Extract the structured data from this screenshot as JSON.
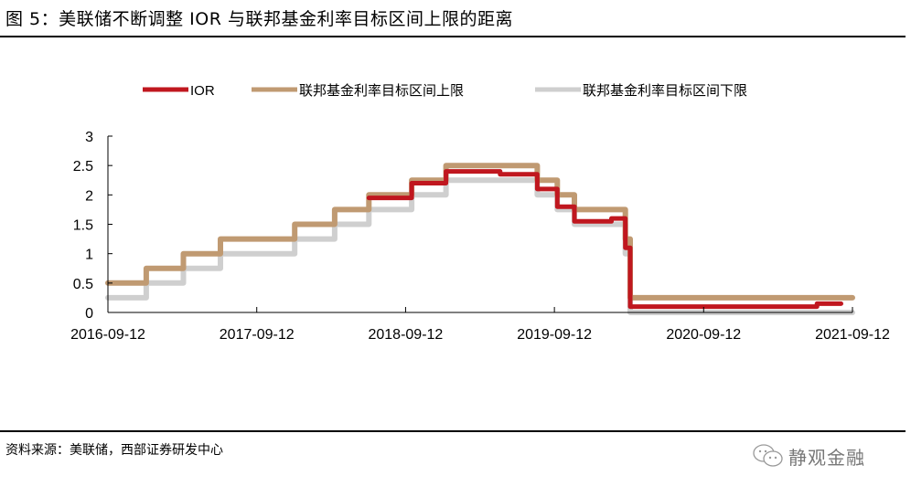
{
  "header": {
    "title": "图 5：美联储不断调整 IOR 与联邦基金利率目标区间上限的距离"
  },
  "footer": {
    "source": "资料来源：美联储，西部证券研发中心",
    "brand": "静观金融",
    "brand_icon": "wechat-icon"
  },
  "colors": {
    "ior": "#C0171F",
    "upper": "#C09A72",
    "lower": "#CFCFCF",
    "axis": "#000000"
  },
  "chart_data": {
    "type": "line",
    "step": true,
    "title": "美联储不断调整 IOR 与联邦基金利率目标区间上限的距离",
    "xlabel": "",
    "ylabel": "",
    "ylim": [
      0,
      3
    ],
    "yticks": [
      0,
      0.5,
      1,
      1.5,
      2,
      2.5,
      3
    ],
    "ytick_labels": [
      "0",
      "0.5",
      "1",
      "1.5",
      "2",
      "2.5",
      "3"
    ],
    "xlim": [
      "2016-09-12",
      "2021-09-12"
    ],
    "xticks": [
      "2016-09-12",
      "2017-09-12",
      "2018-09-12",
      "2019-09-12",
      "2020-09-12",
      "2021-09-12"
    ],
    "grid": false,
    "legend_position": "top",
    "legend": [
      "IOR",
      "联邦基金利率目标区间上限",
      "联邦基金利率目标区间下限"
    ],
    "series": [
      {
        "name": "IOR",
        "color": "#C0171F",
        "points": [
          [
            "2018-06-14",
            1.95
          ],
          [
            "2018-09-27",
            2.2
          ],
          [
            "2018-12-20",
            2.4
          ],
          [
            "2019-05-02",
            2.35
          ],
          [
            "2019-08-01",
            2.1
          ],
          [
            "2019-09-19",
            1.8
          ],
          [
            "2019-10-31",
            1.55
          ],
          [
            "2020-01-30",
            1.6
          ],
          [
            "2020-03-04",
            1.1
          ],
          [
            "2020-03-16",
            0.1
          ],
          [
            "2021-06-17",
            0.15
          ],
          [
            "2021-08-15",
            0.15
          ]
        ]
      },
      {
        "name": "联邦基金利率目标区间上限",
        "color": "#C09A72",
        "points": [
          [
            "2016-09-12",
            0.5
          ],
          [
            "2016-12-15",
            0.75
          ],
          [
            "2017-03-16",
            1.0
          ],
          [
            "2017-06-15",
            1.25
          ],
          [
            "2017-12-14",
            1.5
          ],
          [
            "2018-03-22",
            1.75
          ],
          [
            "2018-06-14",
            2.0
          ],
          [
            "2018-09-27",
            2.25
          ],
          [
            "2018-12-20",
            2.5
          ],
          [
            "2019-08-01",
            2.25
          ],
          [
            "2019-09-19",
            2.0
          ],
          [
            "2019-10-31",
            1.75
          ],
          [
            "2020-03-04",
            1.25
          ],
          [
            "2020-03-16",
            0.25
          ],
          [
            "2021-09-12",
            0.25
          ]
        ]
      },
      {
        "name": "联邦基金利率目标区间下限",
        "color": "#CFCFCF",
        "points": [
          [
            "2016-09-12",
            0.25
          ],
          [
            "2016-12-15",
            0.5
          ],
          [
            "2017-03-16",
            0.75
          ],
          [
            "2017-06-15",
            1.0
          ],
          [
            "2017-12-14",
            1.25
          ],
          [
            "2018-03-22",
            1.5
          ],
          [
            "2018-06-14",
            1.75
          ],
          [
            "2018-09-27",
            2.0
          ],
          [
            "2018-12-20",
            2.25
          ],
          [
            "2019-08-01",
            2.0
          ],
          [
            "2019-09-19",
            1.75
          ],
          [
            "2019-10-31",
            1.5
          ],
          [
            "2020-03-04",
            1.0
          ],
          [
            "2020-03-16",
            0.0
          ],
          [
            "2021-09-12",
            0.0
          ]
        ]
      }
    ]
  }
}
